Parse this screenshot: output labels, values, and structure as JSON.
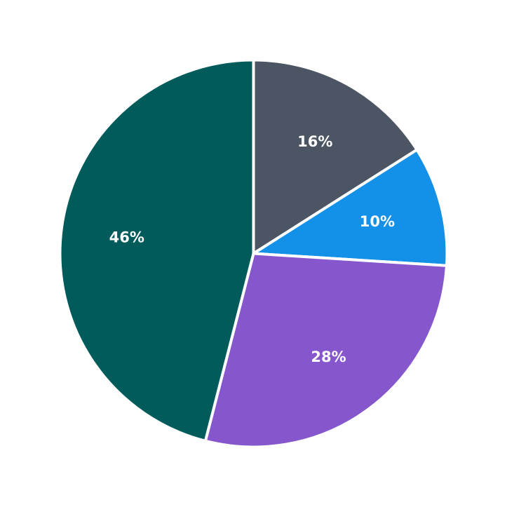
{
  "chart_data": {
    "type": "pie",
    "start_angle_deg": 90,
    "direction": "clockwise",
    "slices": [
      {
        "value": 16,
        "label": "16%",
        "color": "#4b5563"
      },
      {
        "value": 10,
        "label": "10%",
        "color": "#1390e8"
      },
      {
        "value": 28,
        "label": "28%",
        "color": "#8656cc"
      },
      {
        "value": 46,
        "label": "46%",
        "color": "#015b5b"
      }
    ]
  }
}
